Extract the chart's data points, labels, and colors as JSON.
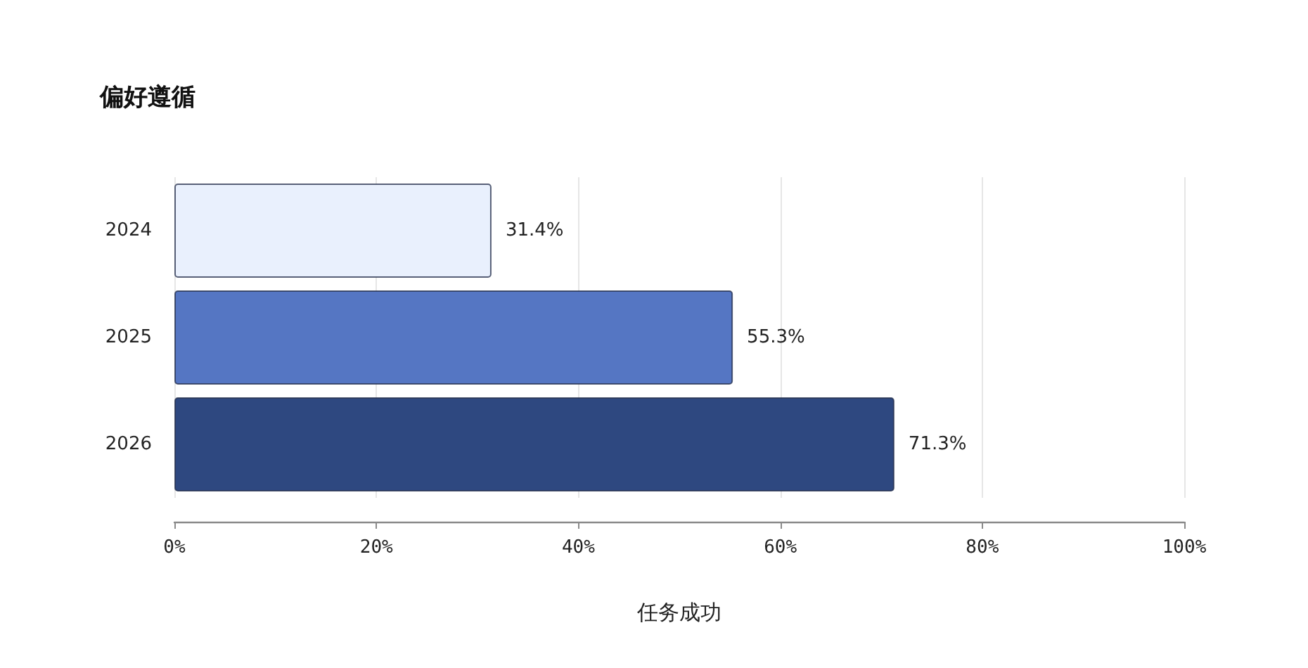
{
  "chart_data": {
    "type": "bar",
    "orientation": "horizontal",
    "title": "偏好遵循",
    "xlabel": "任务成功",
    "categories": [
      "2024",
      "2025",
      "2026"
    ],
    "values": [
      31.4,
      55.3,
      71.3
    ],
    "colors": [
      "#e9f0fd",
      "#5576c3",
      "#2e4880"
    ],
    "value_labels": [
      "31.4%",
      "55.3%",
      "71.3%"
    ],
    "xlim": [
      0,
      100
    ],
    "xticks": [
      {
        "value": 0,
        "label": "0%"
      },
      {
        "value": 20,
        "label": "20%"
      },
      {
        "value": 40,
        "label": "40%"
      },
      {
        "value": 60,
        "label": "60%"
      },
      {
        "value": 80,
        "label": "80%"
      },
      {
        "value": 100,
        "label": "100%"
      }
    ],
    "grid": "x"
  }
}
